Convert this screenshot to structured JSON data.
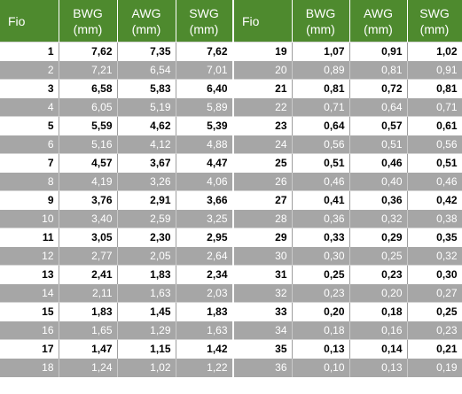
{
  "headers": {
    "fio": "Fio",
    "bwg_line1": "BWG",
    "bwg_line2": "(mm)",
    "awg_line1": "AWG",
    "awg_line2": "(mm)",
    "swg_line1": "SWG",
    "swg_line2": "(mm)"
  },
  "left_rows": [
    {
      "fio": "1",
      "bwg": "7,62",
      "awg": "7,35",
      "swg": "7,62"
    },
    {
      "fio": "2",
      "bwg": "7,21",
      "awg": "6,54",
      "swg": "7,01"
    },
    {
      "fio": "3",
      "bwg": "6,58",
      "awg": "5,83",
      "swg": "6,40"
    },
    {
      "fio": "4",
      "bwg": "6,05",
      "awg": "5,19",
      "swg": "5,89"
    },
    {
      "fio": "5",
      "bwg": "5,59",
      "awg": "4,62",
      "swg": "5,39"
    },
    {
      "fio": "6",
      "bwg": "5,16",
      "awg": "4,12",
      "swg": "4,88"
    },
    {
      "fio": "7",
      "bwg": "4,57",
      "awg": "3,67",
      "swg": "4,47"
    },
    {
      "fio": "8",
      "bwg": "4,19",
      "awg": "3,26",
      "swg": "4,06"
    },
    {
      "fio": "9",
      "bwg": "3,76",
      "awg": "2,91",
      "swg": "3,66"
    },
    {
      "fio": "10",
      "bwg": "3,40",
      "awg": "2,59",
      "swg": "3,25"
    },
    {
      "fio": "11",
      "bwg": "3,05",
      "awg": "2,30",
      "swg": "2,95"
    },
    {
      "fio": "12",
      "bwg": "2,77",
      "awg": "2,05",
      "swg": "2,64"
    },
    {
      "fio": "13",
      "bwg": "2,41",
      "awg": "1,83",
      "swg": "2,34"
    },
    {
      "fio": "14",
      "bwg": "2,11",
      "awg": "1,63",
      "swg": "2,03"
    },
    {
      "fio": "15",
      "bwg": "1,83",
      "awg": "1,45",
      "swg": "1,83"
    },
    {
      "fio": "16",
      "bwg": "1,65",
      "awg": "1,29",
      "swg": "1,63"
    },
    {
      "fio": "17",
      "bwg": "1,47",
      "awg": "1,15",
      "swg": "1,42"
    },
    {
      "fio": "18",
      "bwg": "1,24",
      "awg": "1,02",
      "swg": "1,22"
    }
  ],
  "right_rows": [
    {
      "fio": "19",
      "bwg": "1,07",
      "awg": "0,91",
      "swg": "1,02"
    },
    {
      "fio": "20",
      "bwg": "0,89",
      "awg": "0,81",
      "swg": "0,91"
    },
    {
      "fio": "21",
      "bwg": "0,81",
      "awg": "0,72",
      "swg": "0,81"
    },
    {
      "fio": "22",
      "bwg": "0,71",
      "awg": "0,64",
      "swg": "0,71"
    },
    {
      "fio": "23",
      "bwg": "0,64",
      "awg": "0,57",
      "swg": "0,61"
    },
    {
      "fio": "24",
      "bwg": "0,56",
      "awg": "0,51",
      "swg": "0,56"
    },
    {
      "fio": "25",
      "bwg": "0,51",
      "awg": "0,46",
      "swg": "0,51"
    },
    {
      "fio": "26",
      "bwg": "0,46",
      "awg": "0,40",
      "swg": "0,46"
    },
    {
      "fio": "27",
      "bwg": "0,41",
      "awg": "0,36",
      "swg": "0,42"
    },
    {
      "fio": "28",
      "bwg": "0,36",
      "awg": "0,32",
      "swg": "0,38"
    },
    {
      "fio": "29",
      "bwg": "0,33",
      "awg": "0,29",
      "swg": "0,35"
    },
    {
      "fio": "30",
      "bwg": "0,30",
      "awg": "0,25",
      "swg": "0,32"
    },
    {
      "fio": "31",
      "bwg": "0,25",
      "awg": "0,23",
      "swg": "0,30"
    },
    {
      "fio": "32",
      "bwg": "0,23",
      "awg": "0,20",
      "swg": "0,27"
    },
    {
      "fio": "33",
      "bwg": "0,20",
      "awg": "0,18",
      "swg": "0,25"
    },
    {
      "fio": "34",
      "bwg": "0,18",
      "awg": "0,16",
      "swg": "0,23"
    },
    {
      "fio": "35",
      "bwg": "0,13",
      "awg": "0,14",
      "swg": "0,21"
    },
    {
      "fio": "36",
      "bwg": "0,10",
      "awg": "0,13",
      "swg": "0,19"
    }
  ]
}
